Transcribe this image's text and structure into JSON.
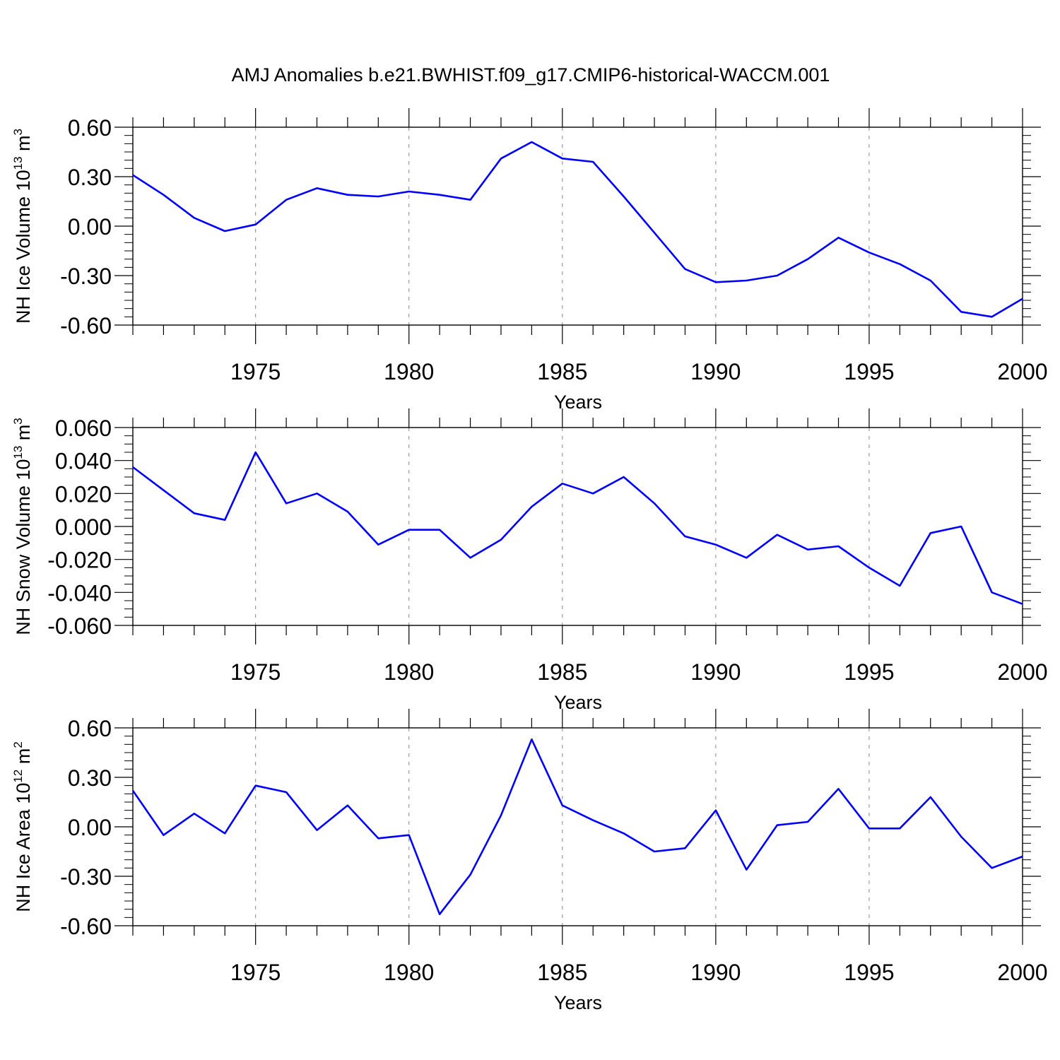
{
  "title": "AMJ Anomalies b.e21.BWHIST.f09_g17.CMIP6-historical-WACCM.001",
  "line_color": "#0000ff",
  "chart_data": [
    {
      "type": "line",
      "ylabel": "NH Ice Volume 10",
      "ylabel_exp": "13",
      "ylabel_unit": " m",
      "ylabel_unit_exp": "3",
      "xlabel": "Years",
      "xlim": [
        1971,
        2000
      ],
      "ylim": [
        -0.6,
        0.6
      ],
      "yticks": [
        -0.6,
        -0.3,
        0.0,
        0.3,
        0.6
      ],
      "ytick_labels": [
        "-0.60",
        "-0.30",
        "0.00",
        "0.30",
        "0.60"
      ],
      "xticks": [
        1975,
        1980,
        1985,
        1990,
        1995,
        2000
      ],
      "xtick_labels": [
        "1975",
        "1980",
        "1985",
        "1990",
        "1995",
        "2000"
      ],
      "x": [
        1971,
        1972,
        1973,
        1974,
        1975,
        1976,
        1977,
        1978,
        1979,
        1980,
        1981,
        1982,
        1983,
        1984,
        1985,
        1986,
        1987,
        1988,
        1989,
        1990,
        1991,
        1992,
        1993,
        1994,
        1995,
        1996,
        1997,
        1998,
        1999,
        2000
      ],
      "series": [
        {
          "values": [
            0.31,
            0.19,
            0.05,
            -0.03,
            0.01,
            0.16,
            0.23,
            0.19,
            0.18,
            0.21,
            0.19,
            0.16,
            0.41,
            0.51,
            0.41,
            0.39,
            0.18,
            -0.04,
            -0.26,
            -0.34,
            -0.33,
            -0.3,
            -0.2,
            -0.07,
            -0.16,
            -0.23,
            -0.33,
            -0.52,
            -0.55,
            -0.44
          ]
        }
      ]
    },
    {
      "type": "line",
      "ylabel": "NH Snow Volume 10",
      "ylabel_exp": "13",
      "ylabel_unit": " m",
      "ylabel_unit_exp": "3",
      "xlabel": "Years",
      "xlim": [
        1971,
        2000
      ],
      "ylim": [
        -0.06,
        0.06
      ],
      "yticks": [
        -0.06,
        -0.04,
        -0.02,
        0.0,
        0.02,
        0.04,
        0.06
      ],
      "ytick_labels": [
        "-0.060",
        "-0.040",
        "-0.020",
        "0.000",
        "0.020",
        "0.040",
        "0.060"
      ],
      "xticks": [
        1975,
        1980,
        1985,
        1990,
        1995,
        2000
      ],
      "xtick_labels": [
        "1975",
        "1980",
        "1985",
        "1990",
        "1995",
        "2000"
      ],
      "x": [
        1971,
        1972,
        1973,
        1974,
        1975,
        1976,
        1977,
        1978,
        1979,
        1980,
        1981,
        1982,
        1983,
        1984,
        1985,
        1986,
        1987,
        1988,
        1989,
        1990,
        1991,
        1992,
        1993,
        1994,
        1995,
        1996,
        1997,
        1998,
        1999,
        2000
      ],
      "series": [
        {
          "values": [
            0.036,
            0.022,
            0.008,
            0.004,
            0.045,
            0.014,
            0.02,
            0.009,
            -0.011,
            -0.002,
            -0.002,
            -0.019,
            -0.008,
            0.012,
            0.026,
            0.02,
            0.03,
            0.014,
            -0.006,
            -0.011,
            -0.019,
            -0.005,
            -0.014,
            -0.012,
            -0.025,
            -0.036,
            -0.004,
            0.0,
            -0.04,
            -0.047
          ]
        }
      ]
    },
    {
      "type": "line",
      "ylabel": "NH Ice Area 10",
      "ylabel_exp": "12",
      "ylabel_unit": " m",
      "ylabel_unit_exp": "2",
      "xlabel": "Years",
      "xlim": [
        1971,
        2000
      ],
      "ylim": [
        -0.6,
        0.6
      ],
      "yticks": [
        -0.6,
        -0.3,
        0.0,
        0.3,
        0.6
      ],
      "ytick_labels": [
        "-0.60",
        "-0.30",
        "0.00",
        "0.30",
        "0.60"
      ],
      "xticks": [
        1975,
        1980,
        1985,
        1990,
        1995,
        2000
      ],
      "xtick_labels": [
        "1975",
        "1980",
        "1985",
        "1990",
        "1995",
        "2000"
      ],
      "x": [
        1971,
        1972,
        1973,
        1974,
        1975,
        1976,
        1977,
        1978,
        1979,
        1980,
        1981,
        1982,
        1983,
        1984,
        1985,
        1986,
        1987,
        1988,
        1989,
        1990,
        1991,
        1992,
        1993,
        1994,
        1995,
        1996,
        1997,
        1998,
        1999,
        2000
      ],
      "series": [
        {
          "values": [
            0.22,
            -0.05,
            0.08,
            -0.04,
            0.25,
            0.21,
            -0.02,
            0.13,
            -0.07,
            -0.05,
            -0.53,
            -0.29,
            0.07,
            0.53,
            0.13,
            0.04,
            -0.04,
            -0.15,
            -0.13,
            0.1,
            -0.26,
            0.01,
            0.03,
            0.23,
            -0.01,
            -0.01,
            0.18,
            -0.06,
            -0.25,
            -0.18
          ]
        }
      ]
    }
  ]
}
